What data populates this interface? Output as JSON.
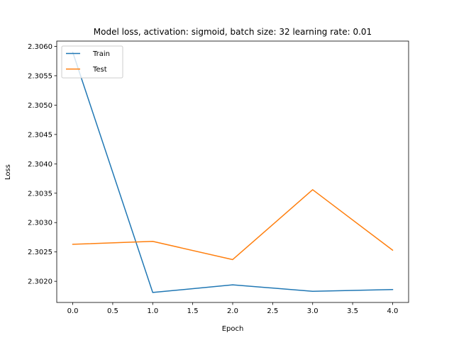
{
  "chart_data": {
    "type": "line",
    "title": "Model loss, activation: sigmoid, batch size: 32 learning rate: 0.01",
    "xlabel": "Epoch",
    "ylabel": "Loss",
    "x": [
      0,
      1,
      2,
      3,
      4
    ],
    "xlim": [
      -0.2,
      4.2
    ],
    "ylim": [
      2.30164,
      2.30609
    ],
    "x_ticks": [
      0.0,
      0.5,
      1.0,
      1.5,
      2.0,
      2.5,
      3.0,
      3.5,
      4.0
    ],
    "x_tick_labels": [
      "0.0",
      "0.5",
      "1.0",
      "1.5",
      "2.0",
      "2.5",
      "3.0",
      "3.5",
      "4.0"
    ],
    "y_ticks": [
      2.302,
      2.3025,
      2.303,
      2.3035,
      2.304,
      2.3045,
      2.305,
      2.3055,
      2.306
    ],
    "y_tick_labels": [
      "2.3020",
      "2.3025",
      "2.3030",
      "2.3035",
      "2.3040",
      "2.3045",
      "2.3050",
      "2.3055",
      "2.3060"
    ],
    "grid": false,
    "legend_position": "upper-left",
    "series": [
      {
        "name": "Train",
        "color": "#1f77b4",
        "values": [
          2.3059,
          2.30181,
          2.30194,
          2.30183,
          2.30186
        ]
      },
      {
        "name": "Test",
        "color": "#ff7f0e",
        "values": [
          2.30263,
          2.30268,
          2.30237,
          2.30356,
          2.30253
        ]
      }
    ]
  }
}
